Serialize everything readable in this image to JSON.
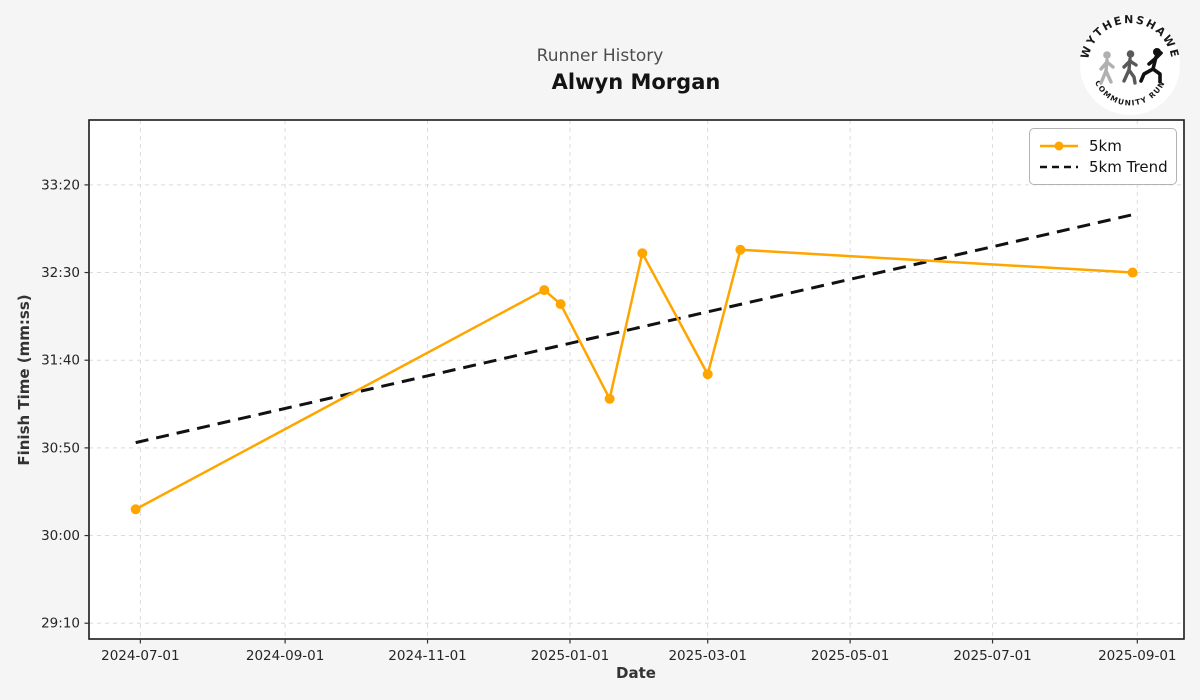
{
  "header": {
    "suptitle": "Runner History",
    "title": "Alwyn Morgan"
  },
  "logo": {
    "arc_top": "WYTHENSHAWE",
    "arc_bottom": "COMMUNITY RUN"
  },
  "chart_data": {
    "type": "line",
    "title": "Runner History",
    "subtitle": "Alwyn Morgan",
    "xlabel": "Date",
    "ylabel": "Finish Time (mm:ss)",
    "x_ticks": [
      "2024-07-01",
      "2024-09-01",
      "2024-11-01",
      "2025-01-01",
      "2025-03-01",
      "2025-05-01",
      "2025-07-01",
      "2025-09-01"
    ],
    "y_ticks": [
      "29:10",
      "30:00",
      "30:50",
      "31:40",
      "32:30",
      "33:20"
    ],
    "xlim": [
      "2024-06-09",
      "2025-09-21"
    ],
    "ylim": [
      "29:01",
      "33:57"
    ],
    "grid": true,
    "legend_position": "upper right",
    "series": [
      {
        "name": "5km",
        "color": "#FFA500",
        "marker": "circle",
        "line_style": "solid",
        "points": [
          {
            "date": "2024-06-29",
            "time": "30:15"
          },
          {
            "date": "2024-12-21",
            "time": "32:20"
          },
          {
            "date": "2024-12-28",
            "time": "32:12"
          },
          {
            "date": "2025-01-18",
            "time": "31:18"
          },
          {
            "date": "2025-02-01",
            "time": "32:41"
          },
          {
            "date": "2025-03-01",
            "time": "31:32"
          },
          {
            "date": "2025-03-15",
            "time": "32:43"
          },
          {
            "date": "2025-08-30",
            "time": "32:30"
          }
        ]
      },
      {
        "name": "5km Trend",
        "color": "#111111",
        "marker": "none",
        "line_style": "dashed",
        "points": [
          {
            "date": "2024-06-29",
            "time": "30:53"
          },
          {
            "date": "2025-08-30",
            "time": "33:03"
          }
        ]
      }
    ]
  },
  "colors": {
    "figure_background": "#f5f5f5",
    "plot_background": "#ffffff",
    "grid": "#dcdcdc",
    "spine": "#1a1a1a",
    "tick_label": "#262626",
    "accent": "#FFA500",
    "trend": "#111111"
  }
}
